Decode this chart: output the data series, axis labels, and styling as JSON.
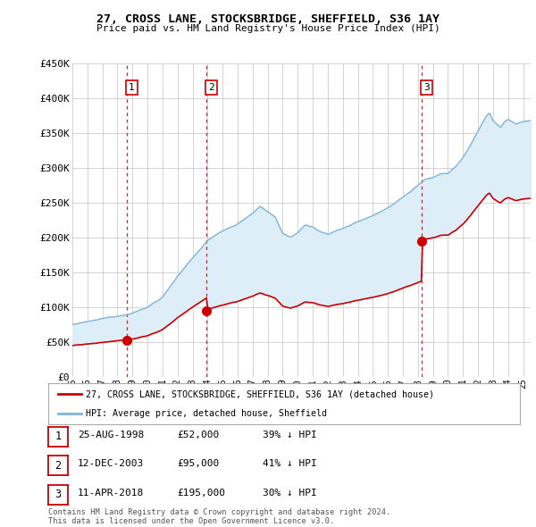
{
  "title": "27, CROSS LANE, STOCKSBRIDGE, SHEFFIELD, S36 1AY",
  "subtitle": "Price paid vs. HM Land Registry's House Price Index (HPI)",
  "ylim": [
    0,
    450000
  ],
  "yticks": [
    0,
    50000,
    100000,
    150000,
    200000,
    250000,
    300000,
    350000,
    400000,
    450000
  ],
  "ytick_labels": [
    "£0",
    "£50K",
    "£100K",
    "£150K",
    "£200K",
    "£250K",
    "£300K",
    "£350K",
    "£400K",
    "£450K"
  ],
  "sale_dates_num": [
    1998.646,
    2003.945,
    2018.276
  ],
  "sale_prices": [
    52000,
    95000,
    195000
  ],
  "sale_labels": [
    "1",
    "2",
    "3"
  ],
  "hpi_color": "#7fb3d9",
  "hpi_fill_color": "#ddeef8",
  "price_color": "#cc0000",
  "vline_color": "#cc0000",
  "background_color": "#ffffff",
  "grid_color": "#cccccc",
  "legend_label_price": "27, CROSS LANE, STOCKSBRIDGE, SHEFFIELD, S36 1AY (detached house)",
  "legend_label_hpi": "HPI: Average price, detached house, Sheffield",
  "table_rows": [
    [
      "1",
      "25-AUG-1998",
      "£52,000",
      "39% ↓ HPI"
    ],
    [
      "2",
      "12-DEC-2003",
      "£95,000",
      "41% ↓ HPI"
    ],
    [
      "3",
      "11-APR-2018",
      "£195,000",
      "30% ↓ HPI"
    ]
  ],
  "footer_text": "Contains HM Land Registry data © Crown copyright and database right 2024.\nThis data is licensed under the Open Government Licence v3.0.",
  "xmin": 1995.0,
  "xmax": 2025.5,
  "hpi_keypoints": [
    [
      1995.0,
      75000
    ],
    [
      1996.0,
      78000
    ],
    [
      1997.0,
      82000
    ],
    [
      1998.0,
      86000
    ],
    [
      1999.0,
      92000
    ],
    [
      2000.0,
      100000
    ],
    [
      2001.0,
      115000
    ],
    [
      2002.0,
      145000
    ],
    [
      2003.0,
      170000
    ],
    [
      2004.0,
      195000
    ],
    [
      2005.0,
      210000
    ],
    [
      2006.0,
      220000
    ],
    [
      2007.0,
      235000
    ],
    [
      2007.5,
      245000
    ],
    [
      2008.5,
      230000
    ],
    [
      2009.0,
      205000
    ],
    [
      2009.5,
      200000
    ],
    [
      2010.0,
      207000
    ],
    [
      2010.5,
      218000
    ],
    [
      2011.0,
      215000
    ],
    [
      2011.5,
      208000
    ],
    [
      2012.0,
      205000
    ],
    [
      2012.5,
      210000
    ],
    [
      2013.0,
      213000
    ],
    [
      2013.5,
      218000
    ],
    [
      2014.0,
      223000
    ],
    [
      2014.5,
      228000
    ],
    [
      2015.0,
      233000
    ],
    [
      2015.5,
      238000
    ],
    [
      2016.0,
      244000
    ],
    [
      2016.5,
      252000
    ],
    [
      2017.0,
      260000
    ],
    [
      2017.5,
      268000
    ],
    [
      2018.0,
      278000
    ],
    [
      2018.5,
      287000
    ],
    [
      2019.0,
      290000
    ],
    [
      2019.5,
      295000
    ],
    [
      2020.0,
      295000
    ],
    [
      2020.5,
      305000
    ],
    [
      2021.0,
      318000
    ],
    [
      2021.5,
      335000
    ],
    [
      2022.0,
      355000
    ],
    [
      2022.5,
      375000
    ],
    [
      2022.75,
      382000
    ],
    [
      2023.0,
      370000
    ],
    [
      2023.5,
      360000
    ],
    [
      2023.75,
      368000
    ],
    [
      2024.0,
      372000
    ],
    [
      2024.5,
      365000
    ],
    [
      2025.0,
      368000
    ],
    [
      2025.5,
      370000
    ]
  ]
}
